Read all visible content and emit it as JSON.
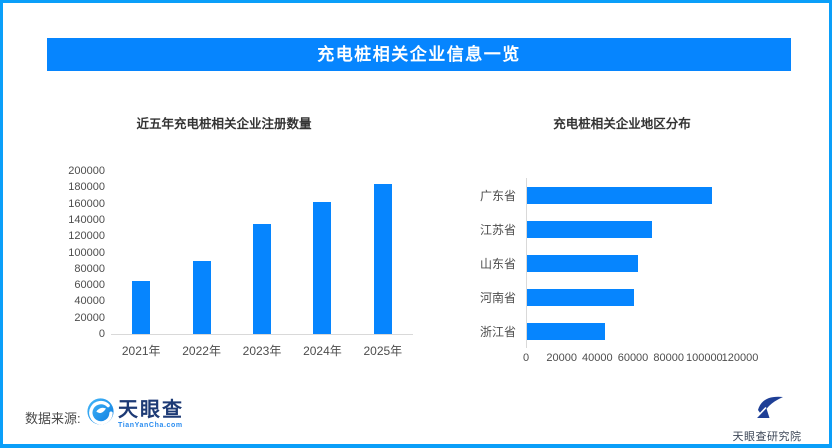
{
  "header": {
    "title": "充电桩相关企业信息一览",
    "bg_color": "#0685fe",
    "text_color": "#ffffff"
  },
  "footer": {
    "source_label": "数据来源:",
    "tyc_logo_text": "天眼查",
    "tyc_logo_subtext": "TianYanCha.com",
    "research_logo_text": "天眼查研究院"
  },
  "colors": {
    "primary_blue": "#0685fe",
    "border_blue": "#0a9ff9",
    "axis_line_gray": "#d9d9d9",
    "title_text": "#333333",
    "axis_text": "#4d4d4d",
    "logo_navy": "#1d3a75"
  },
  "chart_data": [
    {
      "type": "bar",
      "title": "近五年充电桩相关企业注册数量",
      "categories": [
        "2021年",
        "2022年",
        "2023年",
        "2024年",
        "2025年"
      ],
      "values": [
        65000,
        90000,
        135000,
        162000,
        184000
      ],
      "xlabel": "",
      "ylabel": "",
      "ylim": [
        0,
        200000
      ],
      "ytick_step": 20000,
      "grid": false,
      "legend": "none",
      "bar_color": "#0685fe"
    },
    {
      "type": "horizontal-bar",
      "title": "充电桩相关企业地区分布",
      "categories": [
        "广东省",
        "江苏省",
        "山东省",
        "河南省",
        "浙江省"
      ],
      "values": [
        104000,
        70000,
        62000,
        60000,
        44000
      ],
      "xlabel": "",
      "ylabel": "",
      "xlim": [
        0,
        120000
      ],
      "xticks": [
        0,
        20000,
        40000,
        60000,
        80000,
        100000,
        120000
      ],
      "grid": false,
      "legend": "none",
      "bar_color": "#0685fe"
    }
  ]
}
